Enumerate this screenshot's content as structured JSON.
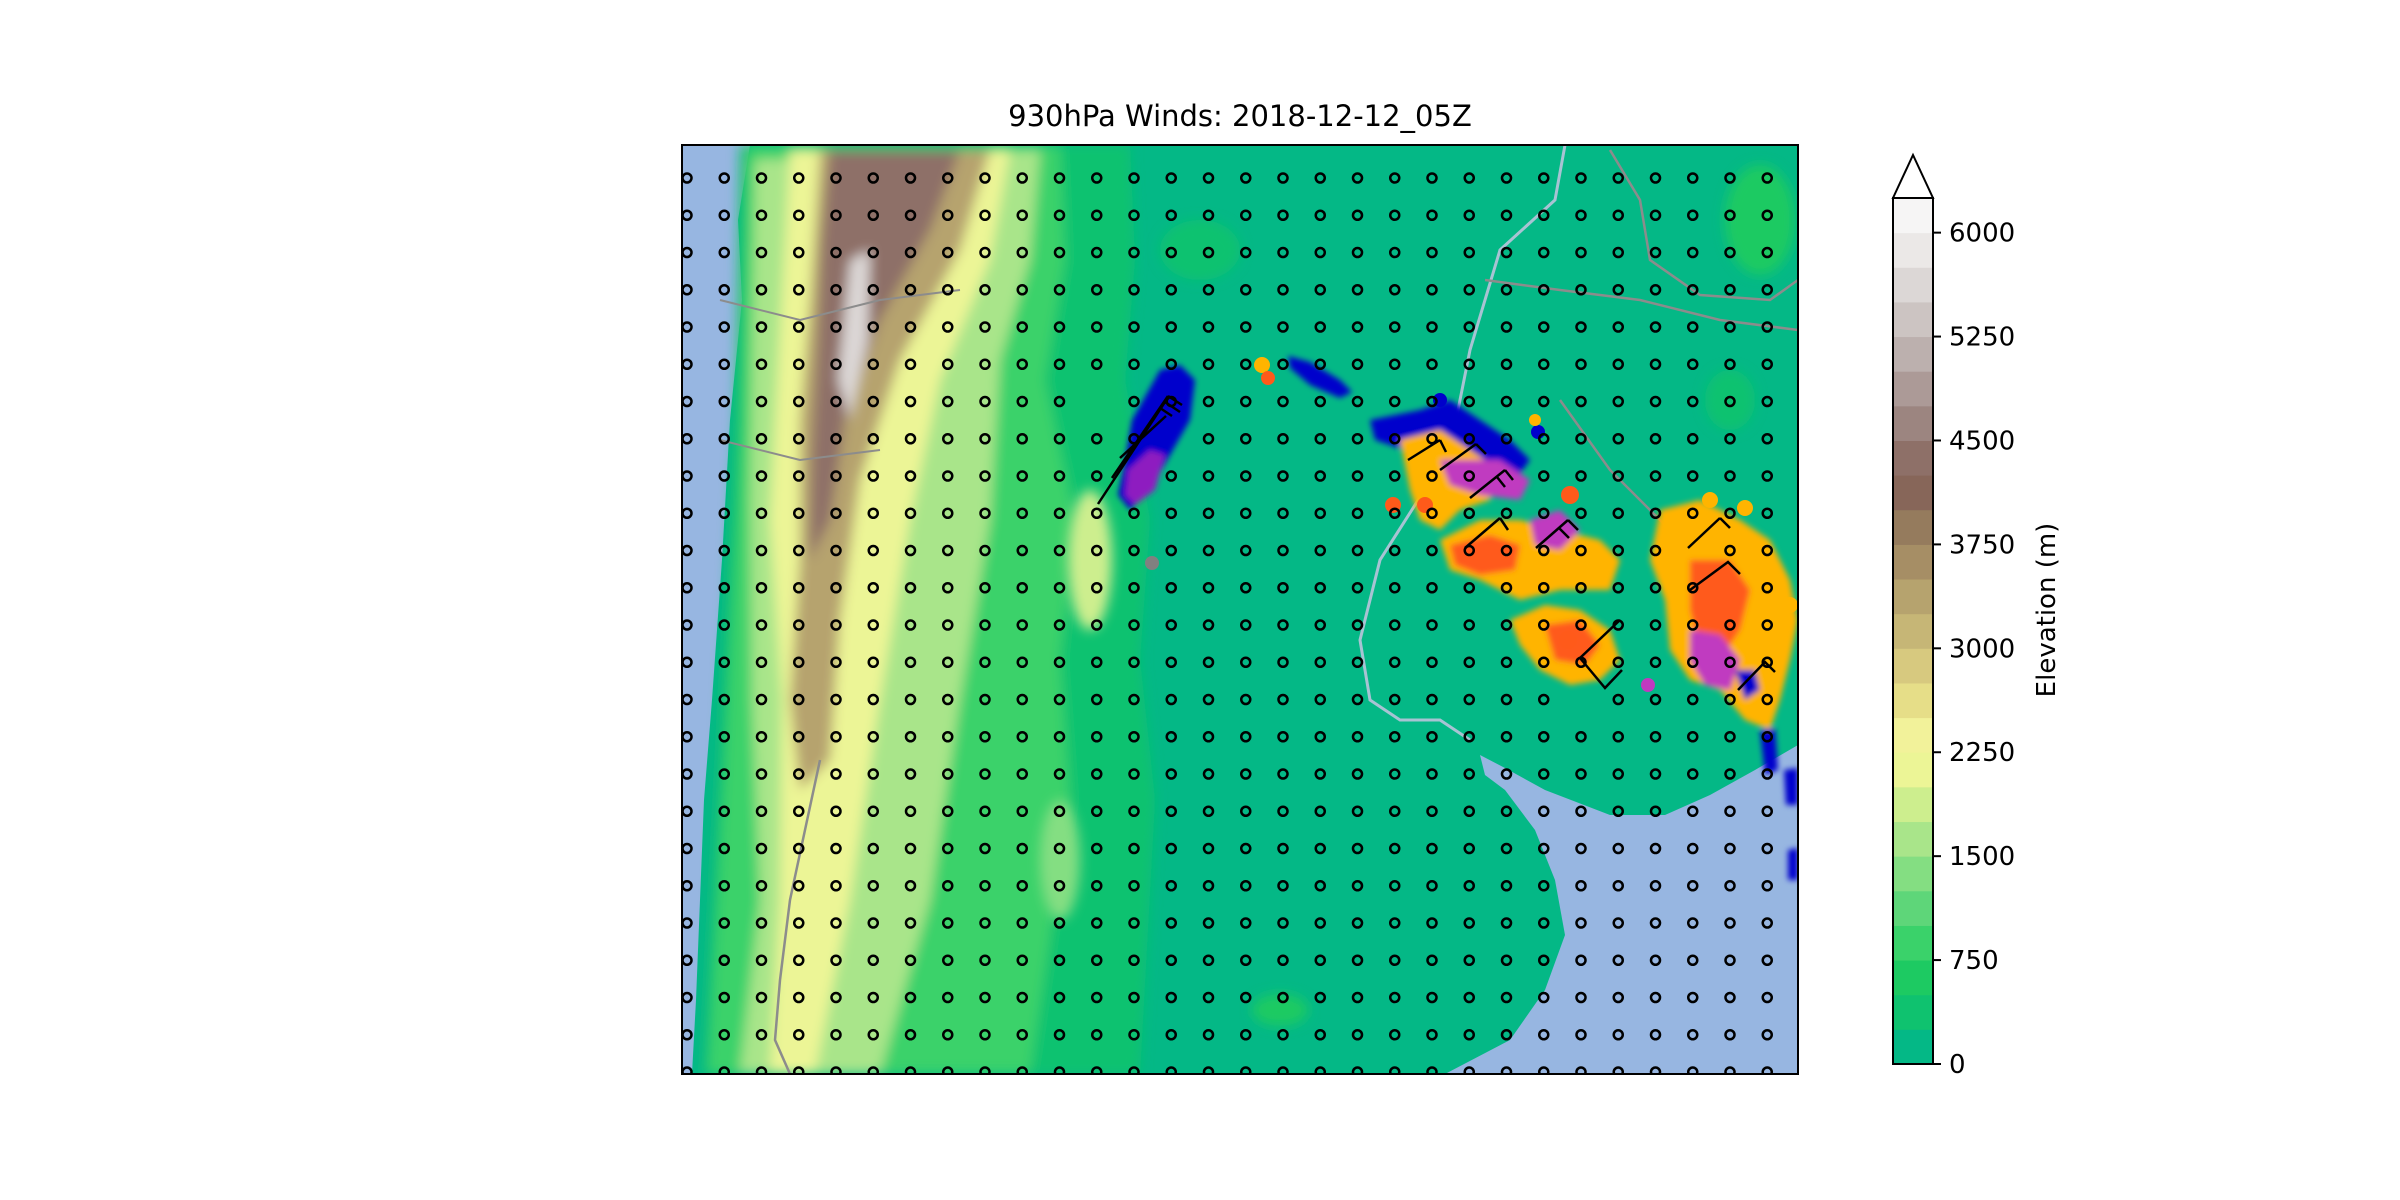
{
  "title": "930hPa Winds: 2018-12-12_05Z",
  "colorbar": {
    "label": "Elevation (m)",
    "ticks": [
      0,
      750,
      1500,
      2250,
      3000,
      3750,
      4500,
      5250,
      6000
    ],
    "tick_labels": [
      "0",
      "750",
      "1500",
      "2250",
      "3000",
      "3750",
      "4500",
      "5250",
      "6000"
    ],
    "min": 0,
    "max": 6250,
    "extend": "max",
    "colors": [
      "#04b886",
      "#0fc26f",
      "#1dca62",
      "#3ad26a",
      "#5ed679",
      "#84de82",
      "#a9e58a",
      "#cdee8e",
      "#ecf596",
      "#f2f29a",
      "#e6de88",
      "#d7c97f",
      "#c6b676",
      "#b6a36e",
      "#a68e65",
      "#957b5d",
      "#876659",
      "#8e7068",
      "#9c8580",
      "#ac9a97",
      "#bcb0ae",
      "#ccc4c2",
      "#dcd7d6",
      "#ebe8e7",
      "#f6f5f5"
    ]
  },
  "map": {
    "ocean_color": "#97b6e1",
    "lowland_color": "#04b886",
    "calm_marker": "o",
    "barb_color": "#000000",
    "river_color": "#a7c3d3",
    "border_color": "#8c8c8c"
  },
  "chart_data": {
    "type": "map",
    "field": "terrain elevation (filled contours) with 930hPa wind barbs and precipitation/reflectivity points",
    "colorbar_range_m": [
      0,
      6000
    ],
    "wind_barbs": "calm circles on a regular grid; barbs only inside convective clusters"
  }
}
